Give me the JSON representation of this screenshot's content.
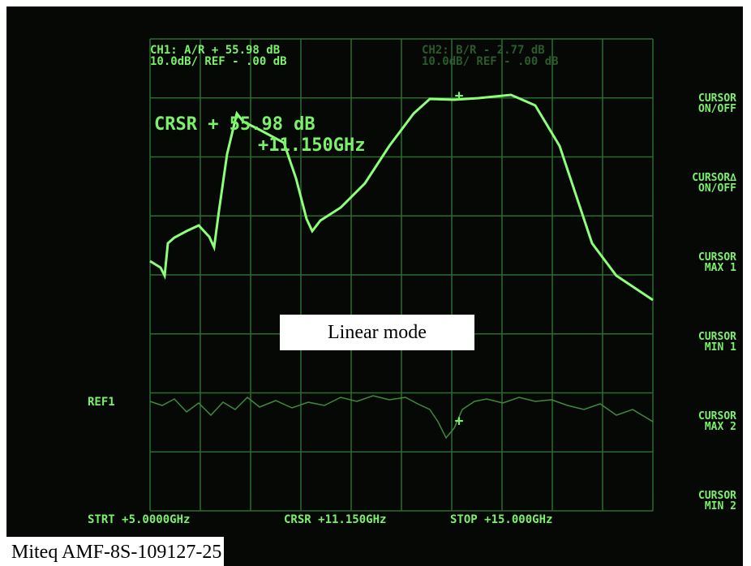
{
  "header": {
    "ch1": {
      "line1": "CH1: A/R + 55.98 dB",
      "line2": "10.0dB/  REF -    .00 dB"
    },
    "ch2": {
      "line1": "CH2: B/R -  2.77 dB",
      "line2": "10.0dB/  REF -    .00 dB"
    }
  },
  "cursor_readout": {
    "value": "CRSR + 55.98 dB",
    "frequency": "+11.150GHz"
  },
  "softkeys": [
    [
      "CURSOR",
      "ON/OFF"
    ],
    [
      "CURSOR∆",
      "ON/OFF"
    ],
    [
      "CURSOR",
      "MAX 1"
    ],
    [
      "CURSOR",
      "MIN 1"
    ],
    [
      "CURSOR",
      "MAX 2"
    ],
    [
      "CURSOR",
      "MIN 2"
    ]
  ],
  "ref_label": "REF1",
  "footer": {
    "start": "STRT +5.0000GHz",
    "cursor": "CRSR +11.150GHz",
    "stop": "STOP +15.000GHz"
  },
  "overlays": {
    "mode": "Linear mode",
    "device": "Miteq AMF-8S-109127-25"
  }
}
